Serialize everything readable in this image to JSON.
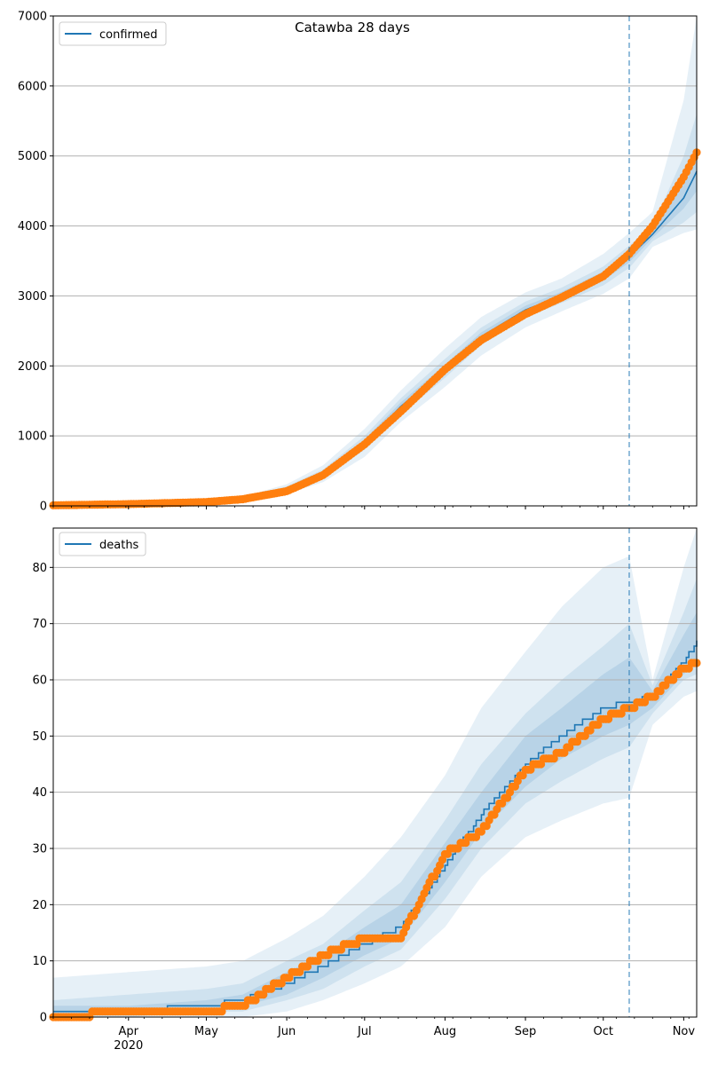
{
  "chart_data": [
    {
      "type": "line",
      "title": "Catawba 28 days",
      "xlabel": "",
      "ylabel": "",
      "ylim": [
        0,
        7000
      ],
      "xlim": [
        "2020-03-03",
        "2020-11-06"
      ],
      "yticks": [
        "0",
        "1000",
        "2000",
        "3000",
        "4000",
        "5000",
        "6000",
        "7000"
      ],
      "xticks": [
        {
          "date": "2020-04-01",
          "label": "Apr",
          "sublabel": "2020"
        },
        {
          "date": "2020-05-01",
          "label": "May",
          "sublabel": ""
        },
        {
          "date": "2020-06-01",
          "label": "Jun",
          "sublabel": ""
        },
        {
          "date": "2020-07-01",
          "label": "Jul",
          "sublabel": ""
        },
        {
          "date": "2020-08-01",
          "label": "Aug",
          "sublabel": ""
        },
        {
          "date": "2020-09-01",
          "label": "Sep",
          "sublabel": ""
        },
        {
          "date": "2020-10-01",
          "label": "Oct",
          "sublabel": ""
        },
        {
          "date": "2020-11-01",
          "label": "Nov",
          "sublabel": ""
        }
      ],
      "grid": "horizontal",
      "legend_position": "top-left",
      "forecast_start": "2020-10-11",
      "series": [
        {
          "name": "confirmed",
          "kind": "model-line",
          "color": "#1f77b4",
          "x": [
            "2020-03-03",
            "2020-04-01",
            "2020-05-01",
            "2020-05-15",
            "2020-06-01",
            "2020-06-15",
            "2020-07-01",
            "2020-07-15",
            "2020-08-01",
            "2020-08-15",
            "2020-09-01",
            "2020-09-15",
            "2020-10-01",
            "2020-10-11",
            "2020-10-20",
            "2020-11-01",
            "2020-11-06"
          ],
          "y": [
            10,
            30,
            60,
            100,
            240,
            460,
            900,
            1420,
            1960,
            2420,
            2800,
            3000,
            3280,
            3560,
            3880,
            4400,
            4780
          ]
        },
        {
          "name": "observed",
          "kind": "markers",
          "color": "#ff7f0e",
          "x": [
            "2020-03-03",
            "2020-04-01",
            "2020-05-01",
            "2020-05-15",
            "2020-06-01",
            "2020-06-15",
            "2020-07-01",
            "2020-07-15",
            "2020-08-01",
            "2020-08-15",
            "2020-09-01",
            "2020-09-15",
            "2020-10-01",
            "2020-10-11",
            "2020-10-20",
            "2020-11-01",
            "2020-11-06"
          ],
          "y": [
            8,
            25,
            55,
            95,
            210,
            440,
            880,
            1350,
            1950,
            2370,
            2740,
            2980,
            3280,
            3600,
            4000,
            4700,
            5050
          ]
        }
      ],
      "bands": {
        "color": "#1f77b4",
        "x": [
          "2020-03-03",
          "2020-04-01",
          "2020-05-01",
          "2020-05-15",
          "2020-06-01",
          "2020-06-15",
          "2020-07-01",
          "2020-07-15",
          "2020-08-01",
          "2020-08-15",
          "2020-09-01",
          "2020-09-15",
          "2020-10-01",
          "2020-10-11",
          "2020-10-20",
          "2020-11-01",
          "2020-11-06"
        ],
        "outer_low": [
          0,
          15,
          40,
          70,
          170,
          340,
          700,
          1200,
          1700,
          2150,
          2550,
          2780,
          3030,
          3250,
          3700,
          3900,
          3950
        ],
        "outer_high": [
          25,
          45,
          80,
          130,
          310,
          580,
          1100,
          1650,
          2250,
          2700,
          3050,
          3250,
          3600,
          3900,
          4200,
          5800,
          7000
        ],
        "mid_low": [
          3,
          22,
          50,
          85,
          200,
          400,
          800,
          1300,
          1830,
          2300,
          2690,
          2900,
          3150,
          3400,
          3780,
          4050,
          4200
        ],
        "mid_high": [
          18,
          38,
          70,
          115,
          280,
          520,
          1000,
          1540,
          2100,
          2550,
          2920,
          3120,
          3420,
          3720,
          4000,
          5000,
          5600
        ],
        "inner_low": [
          6,
          26,
          55,
          92,
          220,
          430,
          850,
          1360,
          1900,
          2360,
          2750,
          2950,
          3220,
          3480,
          3830,
          4250,
          4500
        ],
        "inner_high": [
          14,
          34,
          65,
          108,
          260,
          490,
          950,
          1480,
          2020,
          2480,
          2860,
          3060,
          3350,
          3640,
          3940,
          4600,
          5100
        ]
      }
    },
    {
      "type": "line",
      "title": "",
      "xlabel": "",
      "ylabel": "",
      "ylim": [
        0,
        87
      ],
      "xlim": [
        "2020-03-03",
        "2020-11-06"
      ],
      "yticks": [
        "0",
        "10",
        "20",
        "30",
        "40",
        "50",
        "60",
        "70",
        "80"
      ],
      "xticks": [
        {
          "date": "2020-04-01",
          "label": "Apr",
          "sublabel": "2020"
        },
        {
          "date": "2020-05-01",
          "label": "May",
          "sublabel": ""
        },
        {
          "date": "2020-06-01",
          "label": "Jun",
          "sublabel": ""
        },
        {
          "date": "2020-07-01",
          "label": "Jul",
          "sublabel": ""
        },
        {
          "date": "2020-08-01",
          "label": "Aug",
          "sublabel": ""
        },
        {
          "date": "2020-09-01",
          "label": "Sep",
          "sublabel": ""
        },
        {
          "date": "2020-10-01",
          "label": "Oct",
          "sublabel": ""
        },
        {
          "date": "2020-11-01",
          "label": "Nov",
          "sublabel": ""
        }
      ],
      "grid": "horizontal",
      "legend_position": "top-left",
      "forecast_start": "2020-10-11",
      "series": [
        {
          "name": "deaths",
          "kind": "model-line",
          "color": "#1f77b4",
          "x": [
            "2020-03-03",
            "2020-04-01",
            "2020-05-01",
            "2020-05-15",
            "2020-06-01",
            "2020-06-15",
            "2020-07-01",
            "2020-07-15",
            "2020-08-01",
            "2020-08-15",
            "2020-09-01",
            "2020-09-15",
            "2020-10-01",
            "2020-10-11",
            "2020-10-20",
            "2020-11-01",
            "2020-11-06"
          ],
          "y": [
            1,
            1,
            2,
            3,
            6,
            9,
            13,
            16,
            27,
            36,
            45,
            50,
            55,
            56,
            57,
            63,
            67
          ]
        },
        {
          "name": "observed",
          "kind": "markers",
          "color": "#ff7f0e",
          "x": [
            "2020-03-03",
            "2020-04-01",
            "2020-05-01",
            "2020-05-15",
            "2020-06-01",
            "2020-06-15",
            "2020-07-01",
            "2020-07-15",
            "2020-08-01",
            "2020-08-15",
            "2020-09-01",
            "2020-09-15",
            "2020-10-01",
            "2020-10-11",
            "2020-10-20",
            "2020-11-01",
            "2020-11-06"
          ],
          "y": [
            0,
            1,
            1,
            2,
            7,
            11,
            14,
            14,
            29,
            33,
            44,
            47,
            53,
            55,
            57,
            62,
            63
          ]
        }
      ],
      "bands": {
        "color": "#1f77b4",
        "x": [
          "2020-03-03",
          "2020-04-01",
          "2020-05-01",
          "2020-05-15",
          "2020-06-01",
          "2020-06-15",
          "2020-07-01",
          "2020-07-15",
          "2020-08-01",
          "2020-08-15",
          "2020-09-01",
          "2020-09-15",
          "2020-10-01",
          "2020-10-11",
          "2020-10-20",
          "2020-11-01",
          "2020-11-06"
        ],
        "outer_low": [
          0,
          0,
          0,
          0,
          1,
          3,
          6,
          9,
          16,
          25,
          32,
          35,
          38,
          39,
          52,
          57,
          58
        ],
        "outer_high": [
          7,
          8,
          9,
          10,
          14,
          18,
          25,
          32,
          43,
          55,
          65,
          73,
          80,
          82,
          60,
          80,
          87
        ],
        "mid_low": [
          0,
          0,
          1,
          1,
          3,
          5,
          9,
          12,
          21,
          30,
          38,
          42,
          46,
          48,
          54,
          60,
          61
        ],
        "mid_high": [
          3,
          4,
          5,
          6,
          10,
          13,
          19,
          24,
          35,
          45,
          54,
          60,
          66,
          70,
          59,
          72,
          78
        ],
        "inner_low": [
          0,
          1,
          1,
          2,
          4,
          7,
          11,
          14,
          24,
          33,
          41,
          46,
          50,
          52,
          55,
          61,
          63
        ],
        "inner_high": [
          2,
          2,
          3,
          4,
          8,
          11,
          16,
          20,
          31,
          40,
          50,
          55,
          61,
          64,
          58,
          68,
          72
        ]
      }
    }
  ]
}
